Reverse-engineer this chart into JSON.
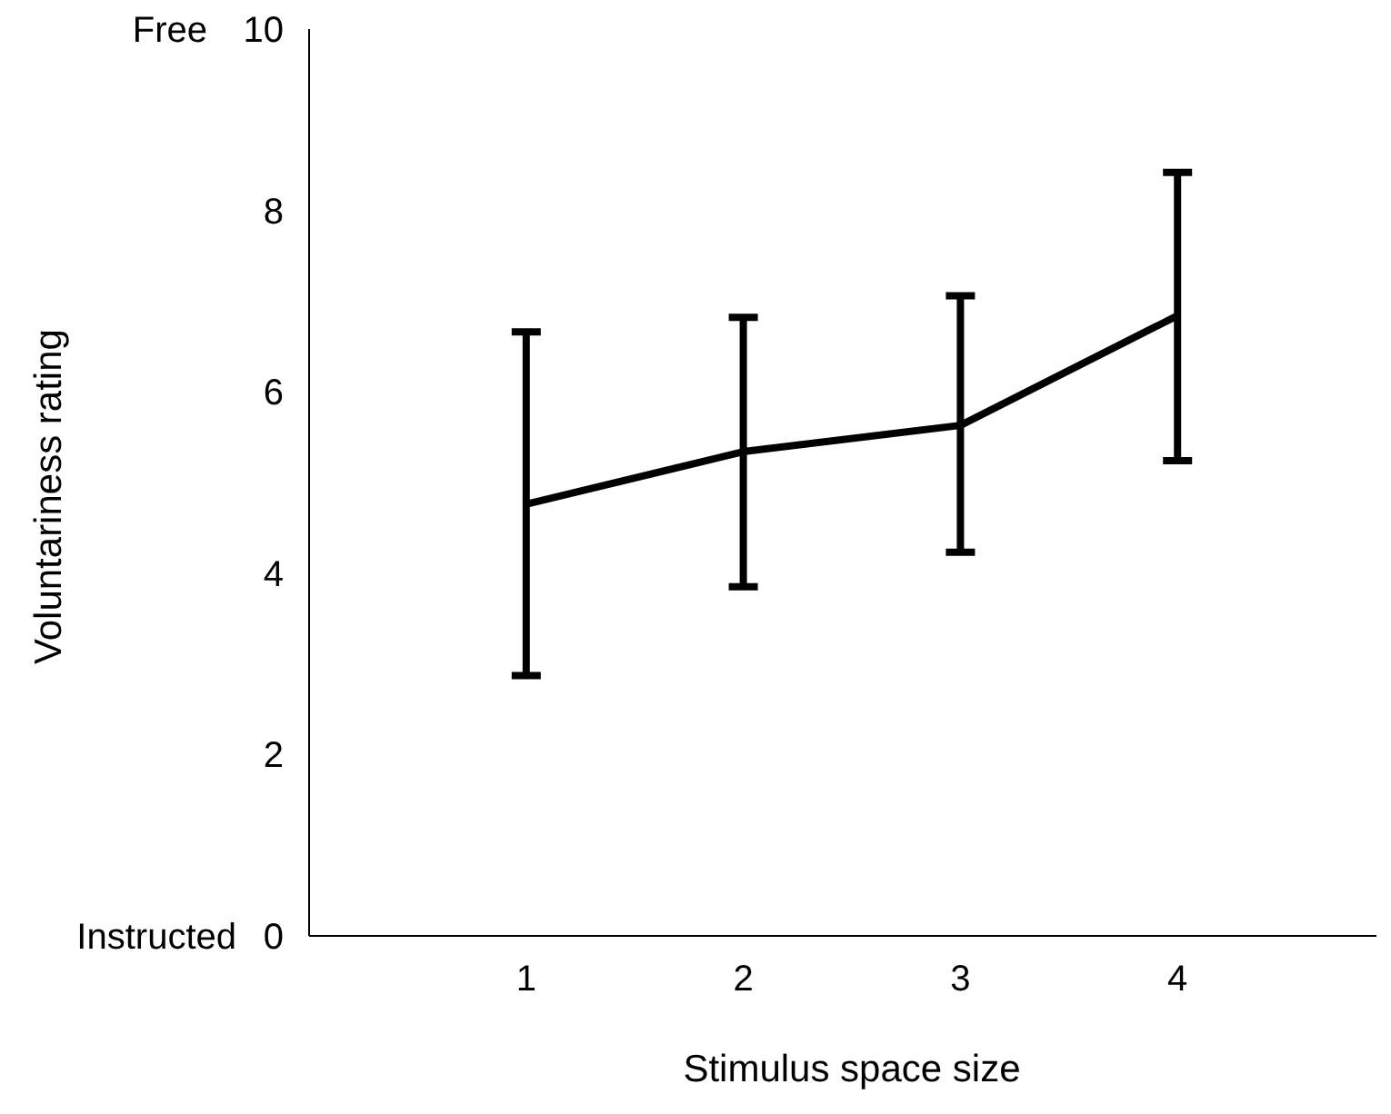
{
  "chart_data": {
    "type": "line",
    "xlabel": "Stimulus space size",
    "ylabel": "Voluntariness rating",
    "annotations": [
      "Free",
      "Instructed"
    ],
    "x": [
      1,
      2,
      3,
      4
    ],
    "series": [
      {
        "color": "#000000",
        "values": [
          4.76,
          5.34,
          5.63,
          6.84
        ],
        "errors": [
          [
            2.87,
            6.66
          ],
          [
            3.85,
            6.82
          ],
          [
            4.23,
            7.06
          ],
          [
            5.24,
            8.42
          ]
        ]
      }
    ],
    "xlim": [
      0,
      5
    ],
    "xticks": [
      1,
      2,
      3,
      4
    ],
    "ylim": [
      0,
      10
    ],
    "yticks": [
      0,
      2,
      4,
      6,
      8,
      10
    ],
    "grid": false,
    "legend": false,
    "marker": "none",
    "line_style": "solid"
  }
}
